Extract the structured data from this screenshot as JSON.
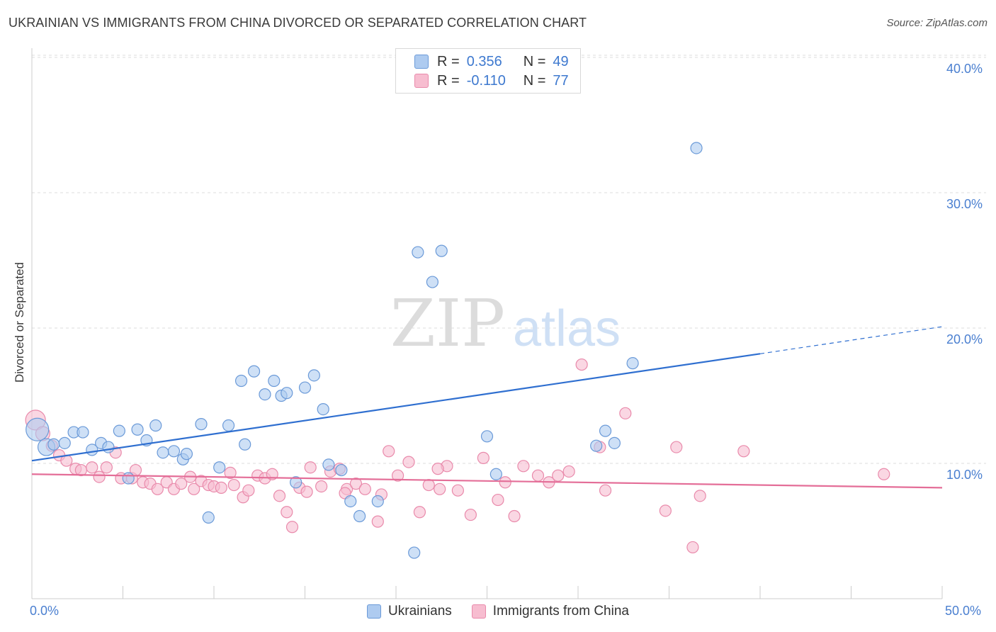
{
  "title": "UKRAINIAN VS IMMIGRANTS FROM CHINA DIVORCED OR SEPARATED CORRELATION CHART",
  "source": "Source: ZipAtlas.com",
  "watermark": {
    "zip": "ZIP",
    "atlas": "atlas"
  },
  "legend": {
    "rows": [
      {
        "r_label": "R =",
        "r_value": "0.356",
        "n_label": "N =",
        "n_value": "49"
      },
      {
        "r_label": "R =",
        "r_value": "-0.110",
        "n_label": "N =",
        "n_value": "77"
      }
    ]
  },
  "bottom_legend": [
    "Ukrainians",
    "Immigrants from China"
  ],
  "colors": {
    "blue_fill": "#aecbf0",
    "blue_stroke": "#6b9ad8",
    "blue_line": "#2f6fd0",
    "pink_fill": "#f7bdd0",
    "pink_stroke": "#e98aab",
    "pink_line": "#e46e98",
    "axis_text": "#4a7fd0",
    "grid": "#dddddd"
  },
  "chart_data": {
    "type": "scatter",
    "title": "UKRAINIAN VS IMMIGRANTS FROM CHINA DIVORCED OR SEPARATED CORRELATION CHART",
    "xlabel": "",
    "ylabel": "Divorced or Separated",
    "xlim": [
      0,
      50
    ],
    "ylim": [
      0,
      41.5
    ],
    "x_tick_labels": [
      "0.0%",
      "50.0%"
    ],
    "y_ticks": [
      10,
      20,
      30,
      40
    ],
    "y_tick_labels": [
      "10.0%",
      "20.0%",
      "30.0%",
      "40.0%"
    ],
    "grid": true,
    "legend_position": "top-center",
    "series": [
      {
        "name": "Ukrainians",
        "R": 0.356,
        "N": 49,
        "trend": {
          "x0": 0,
          "y0": 10.2,
          "x1": 40,
          "y1": 18.1,
          "dashed_to_x": 50,
          "dashed_to_y": 20.1
        },
        "points": [
          [
            0.3,
            12.5,
            16
          ],
          [
            0.8,
            11.2,
            12
          ],
          [
            1.2,
            11.4,
            8
          ],
          [
            1.8,
            11.5,
            8
          ],
          [
            2.3,
            12.3,
            8
          ],
          [
            2.8,
            12.3,
            8
          ],
          [
            3.3,
            11.0,
            8
          ],
          [
            3.8,
            11.5,
            8
          ],
          [
            4.2,
            11.2,
            8
          ],
          [
            4.8,
            12.4,
            8
          ],
          [
            5.3,
            8.9,
            8
          ],
          [
            5.8,
            12.5,
            8
          ],
          [
            6.3,
            11.7,
            8
          ],
          [
            6.8,
            12.8,
            8
          ],
          [
            7.2,
            10.8,
            8
          ],
          [
            7.8,
            10.9,
            8
          ],
          [
            8.3,
            10.3,
            8
          ],
          [
            8.5,
            10.7,
            8
          ],
          [
            9.3,
            12.9,
            8
          ],
          [
            9.7,
            6.0,
            8
          ],
          [
            10.3,
            9.7,
            8
          ],
          [
            10.8,
            12.8,
            8
          ],
          [
            11.5,
            16.1,
            8
          ],
          [
            11.7,
            11.4,
            8
          ],
          [
            12.2,
            16.8,
            8
          ],
          [
            12.8,
            15.1,
            8
          ],
          [
            13.3,
            16.1,
            8
          ],
          [
            13.7,
            15.0,
            8
          ],
          [
            14.0,
            15.2,
            8
          ],
          [
            14.5,
            8.6,
            8
          ],
          [
            15.0,
            15.6,
            8
          ],
          [
            15.5,
            16.5,
            8
          ],
          [
            16.0,
            14.0,
            8
          ],
          [
            16.3,
            9.9,
            8
          ],
          [
            17.0,
            9.5,
            8
          ],
          [
            17.5,
            7.2,
            8
          ],
          [
            18.0,
            6.1,
            8
          ],
          [
            19.0,
            7.2,
            8
          ],
          [
            21.0,
            3.4,
            8
          ],
          [
            21.2,
            25.6,
            8
          ],
          [
            22.0,
            23.4,
            8
          ],
          [
            22.5,
            25.7,
            8
          ],
          [
            25.0,
            12.0,
            8
          ],
          [
            25.5,
            9.2,
            8
          ],
          [
            31.0,
            11.3,
            8
          ],
          [
            31.5,
            12.4,
            8
          ],
          [
            32.0,
            11.5,
            8
          ],
          [
            33.0,
            17.4,
            8
          ],
          [
            36.5,
            33.3,
            8
          ]
        ]
      },
      {
        "name": "Immigrants from China",
        "R": -0.11,
        "N": 77,
        "trend": {
          "x0": 0,
          "y0": 9.2,
          "x1": 50,
          "y1": 8.2
        },
        "points": [
          [
            0.2,
            13.2,
            14
          ],
          [
            0.6,
            12.2,
            10
          ],
          [
            1.1,
            11.3,
            8
          ],
          [
            1.5,
            10.6,
            8
          ],
          [
            1.9,
            10.2,
            8
          ],
          [
            2.4,
            9.6,
            8
          ],
          [
            2.7,
            9.5,
            8
          ],
          [
            3.3,
            9.7,
            8
          ],
          [
            3.7,
            9.0,
            8
          ],
          [
            4.1,
            9.7,
            8
          ],
          [
            4.6,
            10.8,
            8
          ],
          [
            4.9,
            8.9,
            8
          ],
          [
            5.5,
            8.9,
            8
          ],
          [
            5.7,
            9.5,
            8
          ],
          [
            6.1,
            8.6,
            8
          ],
          [
            6.5,
            8.5,
            8
          ],
          [
            6.9,
            8.1,
            8
          ],
          [
            7.4,
            8.6,
            8
          ],
          [
            7.8,
            8.1,
            8
          ],
          [
            8.2,
            8.5,
            8
          ],
          [
            8.7,
            9.0,
            8
          ],
          [
            8.9,
            8.1,
            8
          ],
          [
            9.3,
            8.7,
            8
          ],
          [
            9.7,
            8.4,
            8
          ],
          [
            10.0,
            8.3,
            8
          ],
          [
            10.4,
            8.2,
            8
          ],
          [
            10.9,
            9.3,
            8
          ],
          [
            11.1,
            8.4,
            8
          ],
          [
            11.6,
            7.5,
            8
          ],
          [
            11.9,
            8.0,
            8
          ],
          [
            12.4,
            9.1,
            8
          ],
          [
            12.8,
            8.9,
            8
          ],
          [
            13.2,
            9.2,
            8
          ],
          [
            13.6,
            7.6,
            8
          ],
          [
            14.0,
            6.4,
            8
          ],
          [
            14.3,
            5.3,
            8
          ],
          [
            14.7,
            8.2,
            8
          ],
          [
            15.1,
            7.9,
            8
          ],
          [
            15.3,
            9.7,
            8
          ],
          [
            15.9,
            8.3,
            8
          ],
          [
            16.4,
            9.4,
            8
          ],
          [
            16.9,
            9.6,
            8
          ],
          [
            17.3,
            8.1,
            8
          ],
          [
            17.8,
            8.5,
            8
          ],
          [
            18.3,
            8.1,
            8
          ],
          [
            19.0,
            5.7,
            8
          ],
          [
            19.2,
            7.7,
            8
          ],
          [
            19.6,
            10.9,
            8
          ],
          [
            20.1,
            9.1,
            8
          ],
          [
            20.7,
            10.1,
            8
          ],
          [
            21.3,
            6.4,
            8
          ],
          [
            21.8,
            8.4,
            8
          ],
          [
            22.4,
            8.1,
            8
          ],
          [
            22.8,
            9.8,
            8
          ],
          [
            23.4,
            8.0,
            8
          ],
          [
            24.1,
            6.2,
            8
          ],
          [
            24.8,
            10.4,
            8
          ],
          [
            25.6,
            7.3,
            8
          ],
          [
            26.0,
            8.6,
            8
          ],
          [
            26.5,
            6.1,
            8
          ],
          [
            27.0,
            9.8,
            8
          ],
          [
            27.8,
            9.1,
            8
          ],
          [
            28.4,
            8.6,
            8
          ],
          [
            28.9,
            9.1,
            8
          ],
          [
            29.5,
            9.4,
            8
          ],
          [
            30.2,
            17.3,
            8
          ],
          [
            31.2,
            11.2,
            8
          ],
          [
            31.5,
            8.0,
            8
          ],
          [
            32.6,
            13.7,
            8
          ],
          [
            34.8,
            6.5,
            8
          ],
          [
            35.4,
            11.2,
            8
          ],
          [
            36.3,
            3.8,
            8
          ],
          [
            36.7,
            7.6,
            8
          ],
          [
            39.1,
            10.9,
            8
          ],
          [
            46.8,
            9.2,
            8
          ],
          [
            22.3,
            9.6,
            8
          ],
          [
            17.2,
            7.8,
            8
          ]
        ]
      }
    ]
  }
}
